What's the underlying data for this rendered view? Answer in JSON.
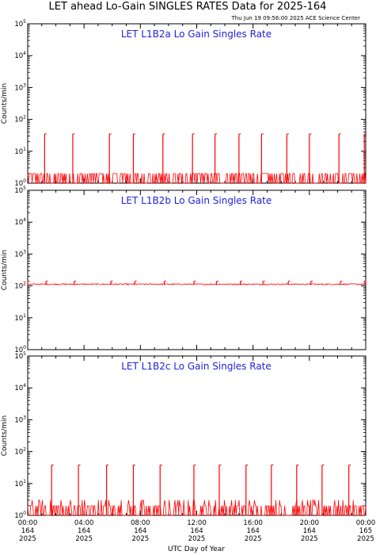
{
  "header": {
    "title": "LET ahead Lo-Gain SINGLES RATES Data for 2025-164",
    "timestamp": "Thu Jun 19 09:56:00 2025 ACE Science Center"
  },
  "colors": {
    "data": "#ff0000",
    "panel_title": "#2222dd",
    "axis": "#000000"
  },
  "chart_data": [
    {
      "type": "line",
      "title": "LET L1B2a Lo Gain Singles Rate",
      "ylabel": "Counts/min",
      "yscale": "log",
      "ylim": [
        1,
        100000
      ],
      "xlim": [
        0,
        24
      ],
      "baseline": [
        1,
        2
      ],
      "spike_level": 35,
      "spike_hours": [
        1.2,
        3.2,
        5.8,
        7.5,
        9.6,
        11.7,
        13.3,
        15.0,
        16.6,
        18.4,
        20.0,
        22.1,
        23.9
      ]
    },
    {
      "type": "line",
      "title": "LET L1B2b Lo Gain Singles Rate",
      "ylabel": "Counts/min",
      "yscale": "log",
      "ylim": [
        1,
        100000
      ],
      "xlim": [
        0,
        24
      ],
      "baseline": [
        108,
        118
      ],
      "spike_level": 140,
      "spike_hours": [
        0.0,
        1.3,
        3.3,
        5.9,
        7.6,
        9.7,
        11.8,
        13.4,
        15.1,
        16.7,
        18.5,
        20.1,
        22.2,
        23.9
      ]
    },
    {
      "type": "line",
      "title": "LET L1B2c Lo Gain Singles Rate",
      "ylabel": "Counts/min",
      "yscale": "log",
      "ylim": [
        1,
        100000
      ],
      "xlim": [
        0,
        24
      ],
      "baseline": [
        1,
        3
      ],
      "spike_level": 38,
      "spike_hours": [
        1.7,
        3.6,
        5.6,
        7.5,
        9.4,
        11.8,
        13.6,
        15.5,
        17.3,
        19.1,
        20.9,
        22.8
      ]
    }
  ],
  "x_axis": {
    "label": "UTC Day of Year",
    "ticks": [
      {
        "time": "00:00",
        "day": "164",
        "year": "2025",
        "hour": 0
      },
      {
        "time": "04:00",
        "day": "164",
        "year": "2025",
        "hour": 4
      },
      {
        "time": "08:00",
        "day": "164",
        "year": "2025",
        "hour": 8
      },
      {
        "time": "12:00",
        "day": "164",
        "year": "2025",
        "hour": 12
      },
      {
        "time": "16:00",
        "day": "164",
        "year": "2025",
        "hour": 16
      },
      {
        "time": "20:00",
        "day": "164",
        "year": "2025",
        "hour": 20
      },
      {
        "time": "00:00",
        "day": "165",
        "year": "2025",
        "hour": 24
      }
    ]
  },
  "y_axis": {
    "ticks": [
      {
        "base": "10",
        "exp": "0",
        "value": 1
      },
      {
        "base": "10",
        "exp": "1",
        "value": 10
      },
      {
        "base": "10",
        "exp": "2",
        "value": 100
      },
      {
        "base": "10",
        "exp": "3",
        "value": 1000
      },
      {
        "base": "10",
        "exp": "4",
        "value": 10000
      },
      {
        "base": "10",
        "exp": "5",
        "value": 100000
      }
    ]
  }
}
